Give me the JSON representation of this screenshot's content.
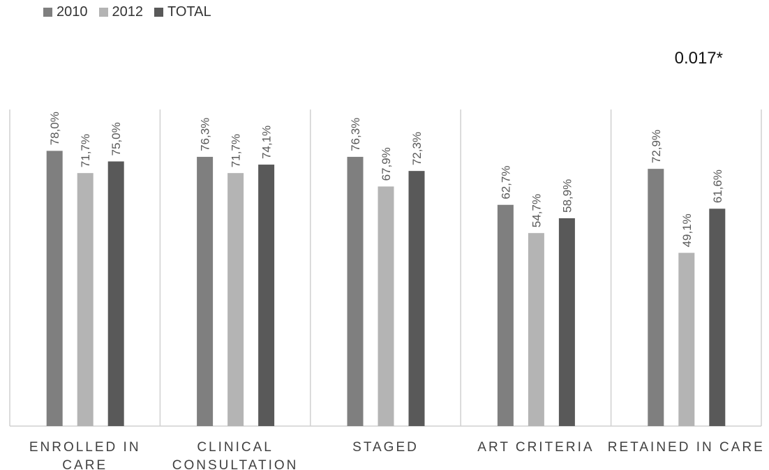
{
  "chart_data": {
    "type": "bar",
    "categories": [
      [
        "ENROLLED IN",
        "CARE"
      ],
      [
        "CLINICAL",
        "CONSULTATION"
      ],
      [
        "STAGED"
      ],
      [
        "ART CRITERIA"
      ],
      [
        "RETAINED IN CARE"
      ]
    ],
    "series": [
      {
        "name": "2010",
        "values": [
          78.0,
          76.3,
          76.3,
          62.7,
          72.9
        ],
        "labels": [
          "78,0%",
          "76,3%",
          "76,3%",
          "62,7%",
          "72,9%"
        ],
        "color": "#7f7f7f"
      },
      {
        "name": "2012",
        "values": [
          71.7,
          71.7,
          67.9,
          54.7,
          49.1
        ],
        "labels": [
          "71,7%",
          "71,7%",
          "67,9%",
          "54,7%",
          "49,1%"
        ],
        "color": "#b4b4b4"
      },
      {
        "name": "TOTAL",
        "values": [
          75.0,
          74.1,
          72.3,
          58.9,
          61.6
        ],
        "labels": [
          "75,0%",
          "74,1%",
          "72,3%",
          "58,9%",
          "61,6%"
        ],
        "color": "#595959"
      }
    ],
    "ylim": [
      0,
      100
    ],
    "grid": false,
    "legend_position": "top-left",
    "annotations": [
      "0.017*"
    ]
  }
}
